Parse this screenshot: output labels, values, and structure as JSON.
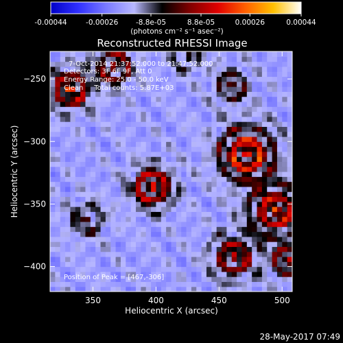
{
  "colorbar": {
    "stops": [
      "#0000c8",
      "#3030ff",
      "#7a7aff",
      "#b8b8ff",
      "#000000",
      "#800000",
      "#e00000",
      "#ff6000",
      "#ffc000",
      "#ffffff"
    ],
    "ticks": [
      "-0.00044",
      "-0.00026",
      "-8.8e-05",
      "8.8e-05",
      "0.00026",
      "0.00044"
    ],
    "tick_values": [
      -0.00044,
      -0.00026,
      -8.8e-05,
      8.8e-05,
      0.00026,
      0.00044
    ],
    "vmin": -0.00044,
    "vmax": 0.00044,
    "units": "(photons cm⁻² s⁻¹ asec⁻²)"
  },
  "chart_data": {
    "type": "heatmap",
    "title": "Reconstructed RHESSI Image",
    "xlabel": "Heliocentric X (arcsec)",
    "ylabel": "Heliocentric Y (arcsec)",
    "xlim": [
      316,
      508
    ],
    "ylim": [
      -420,
      -228
    ],
    "xticks": [
      350,
      400,
      450,
      500
    ],
    "yticks": [
      -250,
      -300,
      -350,
      -400
    ],
    "annotations": {
      "time": "7-Oct-2014 21:37:52.000 to 21:47:52.000",
      "detectors": "Detectors: 3F 6F 9F, Att 0",
      "energy": "Energy Range: 25.0 - 50.0 keV",
      "method": "Clean     Total counts: 5.87E+03",
      "peak": "Position of Peak = [467,-306]"
    },
    "peak": [
      467,
      -306
    ],
    "sources": [
      {
        "x": 472,
        "y": -310,
        "amp": 1.0,
        "sigma": 16
      },
      {
        "x": 397,
        "y": -336,
        "amp": 0.95,
        "sigma": 12
      },
      {
        "x": 332,
        "y": -258,
        "amp": 0.9,
        "sigma": 12
      },
      {
        "x": 367,
        "y": -240,
        "amp": 0.75,
        "sigma": 11
      },
      {
        "x": 495,
        "y": -355,
        "amp": 0.9,
        "sigma": 15
      },
      {
        "x": 462,
        "y": -392,
        "amp": 0.75,
        "sigma": 13
      },
      {
        "x": 505,
        "y": -395,
        "amp": 0.7,
        "sigma": 10
      },
      {
        "x": 460,
        "y": -255,
        "amp": 0.55,
        "sigma": 10
      },
      {
        "x": 345,
        "y": -362,
        "amp": 0.45,
        "sigma": 11
      },
      {
        "x": 425,
        "y": -232,
        "amp": 0.45,
        "sigma": 9
      }
    ]
  },
  "footer": {
    "datetime": "28-May-2017 07:49"
  }
}
